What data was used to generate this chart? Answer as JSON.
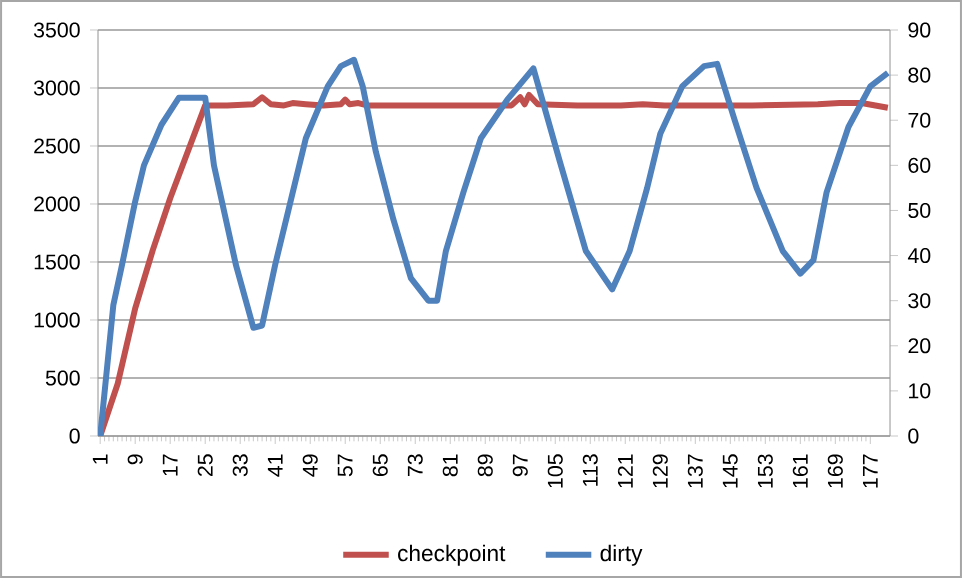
{
  "chart_data": {
    "type": "line",
    "xlim": [
      0.5,
      181.5
    ],
    "xticks": [
      1,
      9,
      17,
      25,
      33,
      41,
      49,
      57,
      65,
      73,
      81,
      89,
      97,
      105,
      113,
      121,
      129,
      137,
      145,
      153,
      161,
      169,
      177
    ],
    "ylim": [
      0,
      3500
    ],
    "yticks": [
      0,
      500,
      1000,
      1500,
      2000,
      2500,
      3000,
      3500
    ],
    "y2lim": [
      0,
      90
    ],
    "y2ticks": [
      0,
      10,
      20,
      30,
      40,
      50,
      60,
      70,
      80,
      90
    ],
    "grid": "y",
    "legend": "bottom",
    "marker": "none",
    "line_style": "solid",
    "series": [
      {
        "name": "checkpoint",
        "color": "#c0504d",
        "x": [
          1,
          5,
          9,
          13,
          17,
          21,
          25,
          30,
          36,
          38,
          40,
          43,
          45,
          48,
          52,
          56,
          57,
          58,
          60,
          62,
          70,
          80,
          88,
          95,
          97,
          98,
          99,
          101,
          110,
          120,
          125,
          130,
          140,
          150,
          165,
          170,
          175,
          181
        ],
        "values": [
          0,
          450,
          1100,
          1600,
          2050,
          2450,
          2850,
          2850,
          2860,
          2920,
          2860,
          2850,
          2870,
          2860,
          2850,
          2860,
          2900,
          2860,
          2870,
          2850,
          2850,
          2850,
          2850,
          2850,
          2920,
          2860,
          2940,
          2860,
          2850,
          2850,
          2860,
          2850,
          2850,
          2850,
          2860,
          2870,
          2870,
          2830
        ]
      },
      {
        "name": "dirty",
        "color": "#4f81bd",
        "axis": "y2",
        "x": [
          1,
          4,
          6,
          9,
          11,
          15,
          19,
          20,
          25,
          27,
          32,
          36,
          38,
          41,
          44,
          48,
          53,
          56,
          59,
          61,
          64,
          68,
          72,
          76,
          78,
          80,
          84,
          88,
          94,
          100,
          106,
          112,
          118,
          122,
          126,
          129,
          134,
          139,
          142,
          146,
          151,
          157,
          161,
          164,
          167,
          172,
          177,
          181
        ],
        "values": [
          0,
          29,
          38,
          52,
          60,
          69,
          75,
          75,
          75,
          60,
          38,
          24,
          24.5,
          38,
          50,
          66,
          77.5,
          82,
          83.4,
          77.5,
          63,
          48,
          35,
          30,
          30,
          41,
          54,
          66,
          74.5,
          81.5,
          61,
          41,
          32.5,
          41,
          55,
          67,
          77.5,
          82,
          82.5,
          70,
          55,
          41,
          36,
          39,
          54,
          68.5,
          77.5,
          80.5
        ]
      }
    ]
  }
}
